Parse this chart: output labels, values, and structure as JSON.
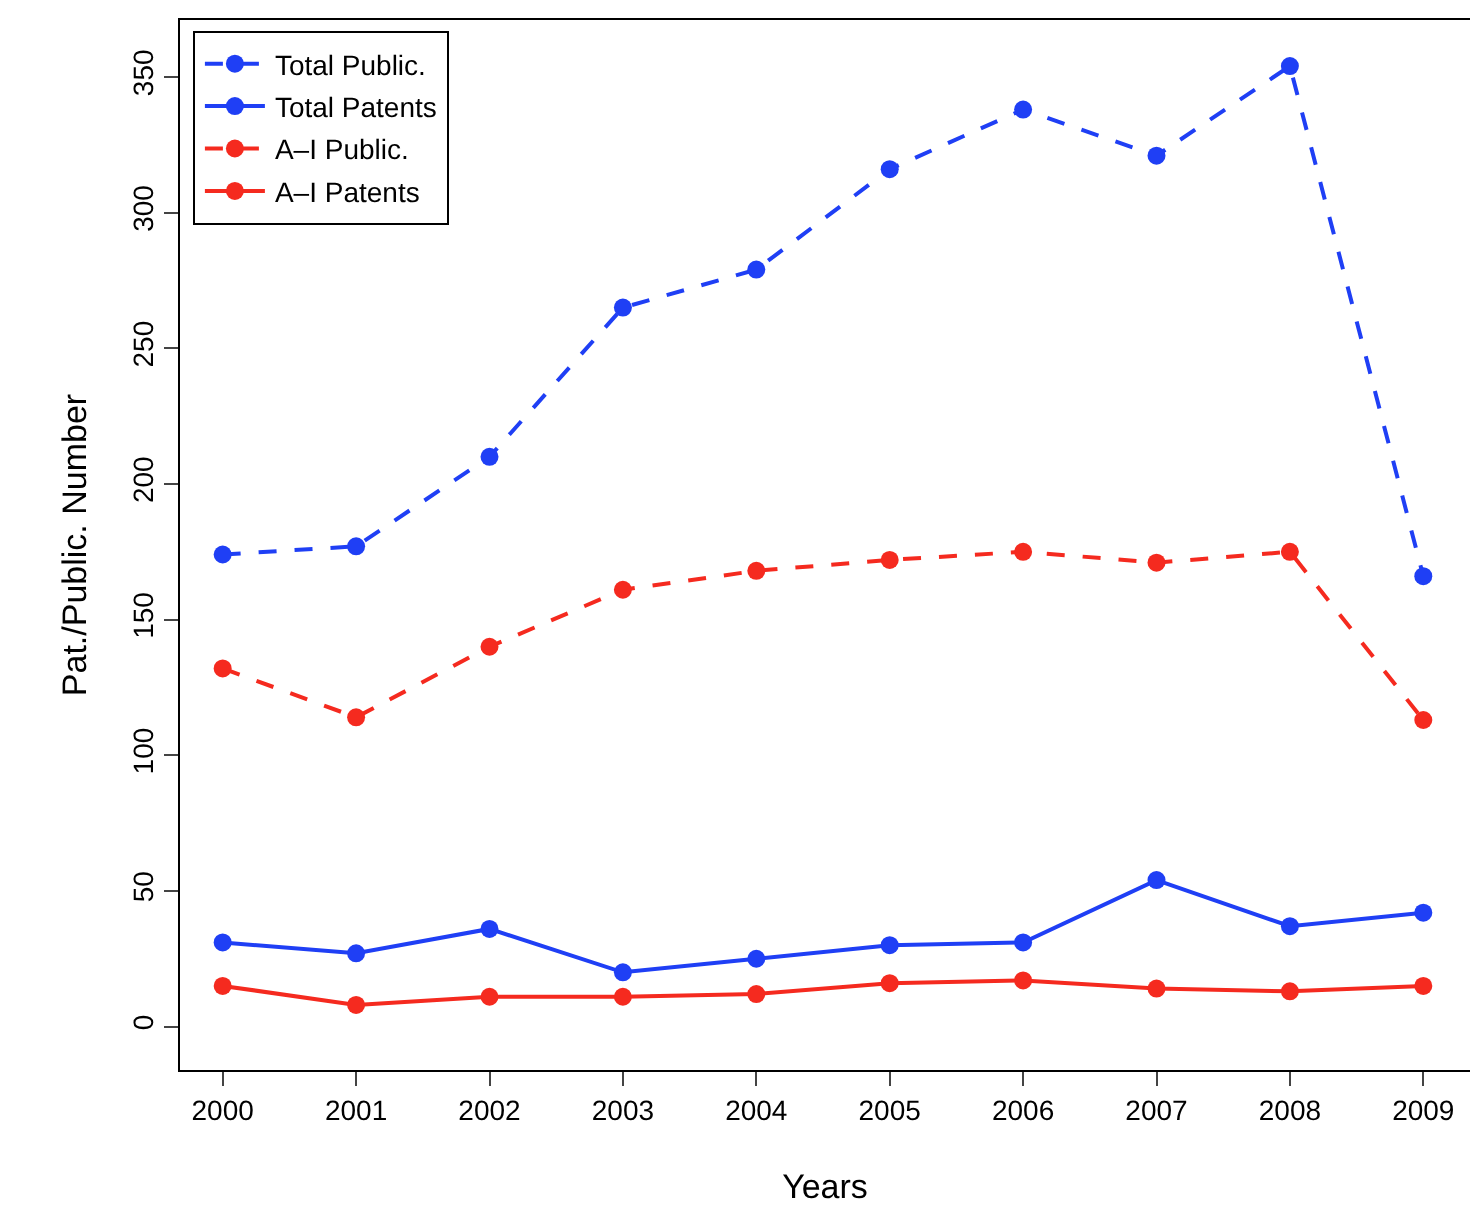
{
  "chart_data": {
    "type": "line",
    "xlabel": "Years",
    "ylabel": "Pat./Public. Number",
    "x": [
      2000,
      2001,
      2002,
      2003,
      2004,
      2005,
      2006,
      2007,
      2008,
      2009
    ],
    "series": [
      {
        "name": "Total Public.",
        "color": "#1f3ff5",
        "line_style": "dashed",
        "values": [
          174,
          177,
          210,
          265,
          279,
          316,
          338,
          321,
          354,
          166
        ]
      },
      {
        "name": "Total Patents",
        "color": "#1f3ff5",
        "line_style": "solid",
        "values": [
          31,
          27,
          36,
          20,
          25,
          30,
          31,
          54,
          37,
          42
        ]
      },
      {
        "name": "A–I Public.",
        "color": "#f52a1f",
        "line_style": "dashed",
        "values": [
          132,
          114,
          140,
          161,
          168,
          172,
          175,
          171,
          175,
          113
        ]
      },
      {
        "name": "A–I Patents",
        "color": "#f52a1f",
        "line_style": "solid",
        "values": [
          15,
          8,
          11,
          11,
          12,
          16,
          17,
          14,
          13,
          15
        ]
      }
    ],
    "xlim": [
      1999.68,
      2009.35
    ],
    "xticks": [
      2000,
      2001,
      2002,
      2003,
      2004,
      2005,
      2006,
      2007,
      2008,
      2009
    ],
    "ylim": [
      -16,
      371
    ],
    "yticks": [
      0,
      50,
      100,
      150,
      200,
      250,
      300,
      350
    ],
    "marker": "circle",
    "legend": "top left",
    "grid": false
  }
}
